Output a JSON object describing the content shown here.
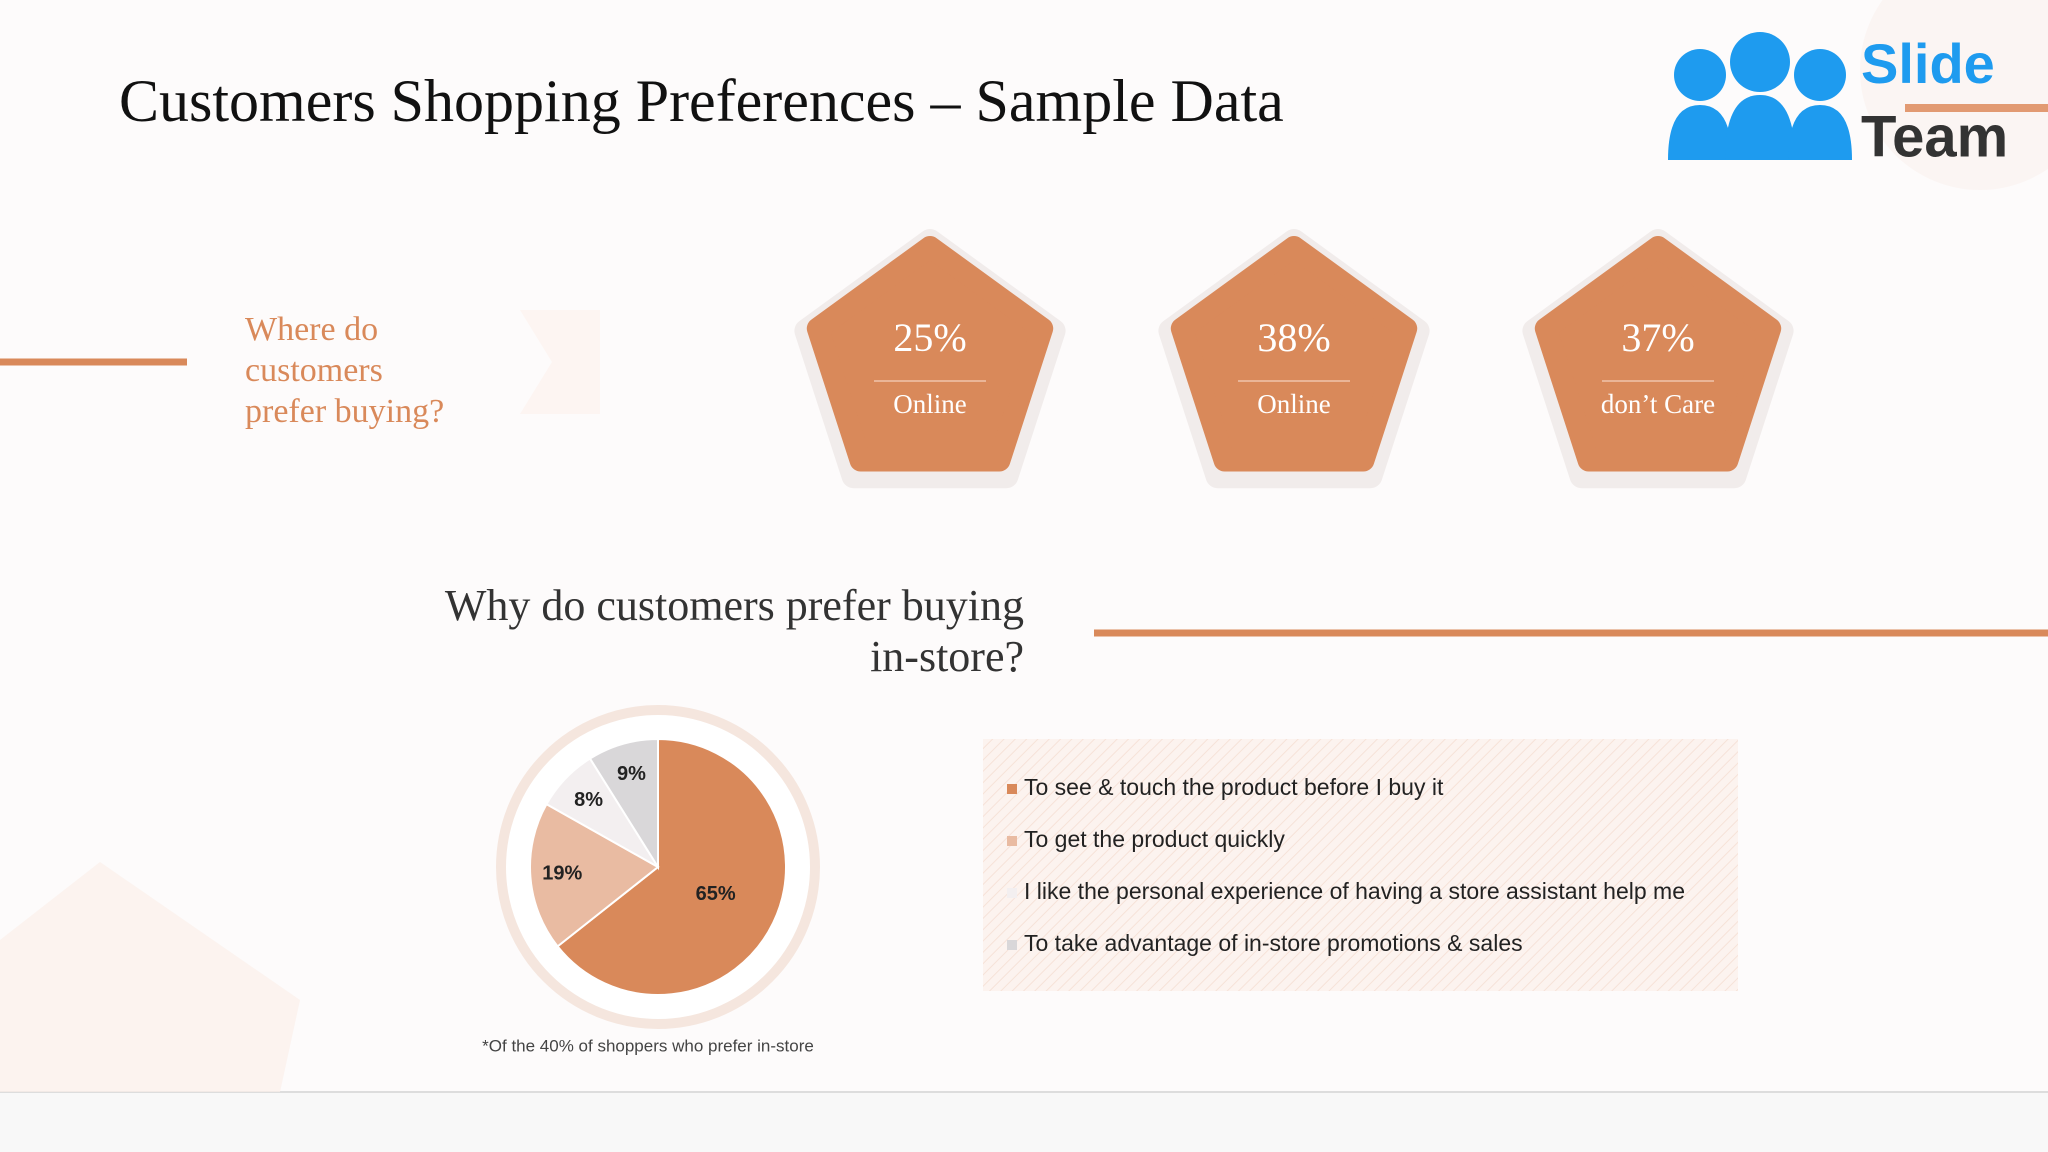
{
  "header": {
    "title": "Customers Shopping Preferences – Sample Data",
    "logo": {
      "line1": "Slide",
      "line2": "Team"
    }
  },
  "question": {
    "lines": [
      "Where do",
      "customers",
      "prefer buying?"
    ]
  },
  "stats": [
    {
      "value": "25%",
      "label": "Online"
    },
    {
      "value": "38%",
      "label": "Online"
    },
    {
      "value": "37%",
      "label": "don’t Care"
    }
  ],
  "section": {
    "lines": [
      "Why do customers prefer buying",
      "in-store?"
    ]
  },
  "chart_data": {
    "type": "pie",
    "categories": [
      "To see & touch the product before I buy it",
      "To get the product quickly",
      "I like the personal experience of having a store assistant help me",
      "To take advantage of in-store promotions & sales"
    ],
    "values": [
      65,
      19,
      8,
      9
    ],
    "value_labels": [
      "65%",
      "19%",
      "8%",
      "9%"
    ],
    "colors": [
      "#d9895a",
      "#e9bba2",
      "#f3eff0",
      "#d9d7d9"
    ]
  },
  "footnote": "*Of the 40% of shoppers who prefer in-store"
}
